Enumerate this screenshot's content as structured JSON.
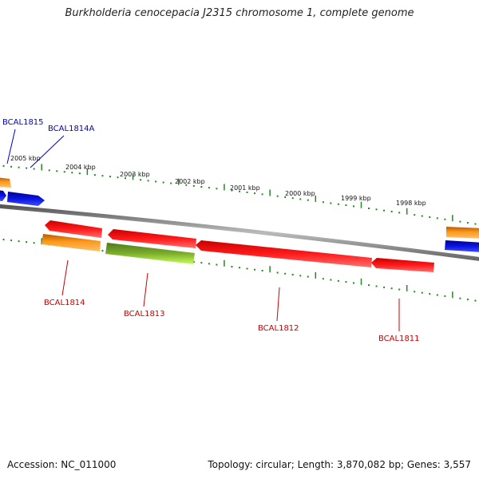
{
  "header": {
    "title": "Burkholderia cenocepacia J2315 chromosome 1, complete genome"
  },
  "footer": {
    "accession": "Accession: NC_011000",
    "summary": "Topology: circular; Length: 3,870,082 bp; Genes: 3,557"
  },
  "scale": {
    "labels": [
      "2005 kbp",
      "2004 kbp",
      "2003 kbp",
      "2002 kbp",
      "2001 kbp",
      "2000 kbp",
      "1999 kbp",
      "1998 kbp"
    ]
  },
  "genes": {
    "top": [
      "BCAL1815",
      "BCAL1814A"
    ],
    "bottom": [
      "BCAL1814",
      "BCAL1813",
      "BCAL1812",
      "BCAL1811"
    ]
  },
  "colors": {
    "forward_label": "#0000cc",
    "reverse_label": "#cc0000",
    "gene_red": "#ff1a1a",
    "gene_blue": "#0a14e0",
    "gene_orange": "#ff9a1a",
    "gene_green": "#a9ff3c",
    "tick_green": "#228822",
    "backbone": "#8c8c8c"
  }
}
